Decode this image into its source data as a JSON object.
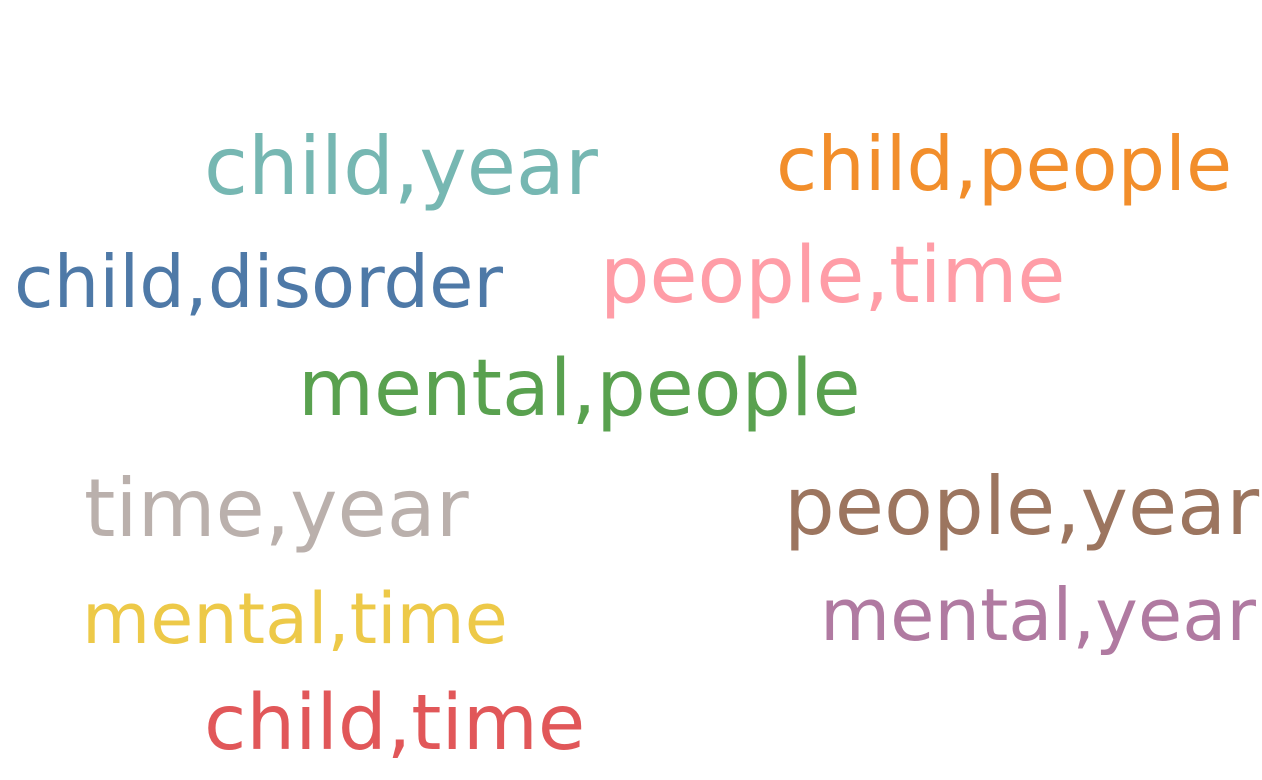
{
  "words": [
    {
      "text": "child,year",
      "color": "#76b7b2"
    },
    {
      "text": "child,people",
      "color": "#f28e2b"
    },
    {
      "text": "child,disorder",
      "color": "#4e79a7"
    },
    {
      "text": "people,time",
      "color": "#ff9da7"
    },
    {
      "text": "mental,people",
      "color": "#59a14f"
    },
    {
      "text": "time,year",
      "color": "#bab0ac"
    },
    {
      "text": "people,year",
      "color": "#9c755f"
    },
    {
      "text": "mental,time",
      "color": "#edc948"
    },
    {
      "text": "mental,year",
      "color": "#b07aa1"
    },
    {
      "text": "child,time",
      "color": "#e15759"
    }
  ]
}
